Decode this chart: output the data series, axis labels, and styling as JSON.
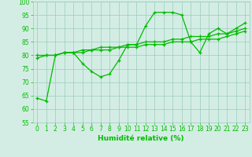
{
  "x": [
    0,
    1,
    2,
    3,
    4,
    5,
    6,
    7,
    8,
    9,
    10,
    11,
    12,
    13,
    14,
    15,
    16,
    17,
    18,
    19,
    20,
    21,
    22,
    23
  ],
  "y_data": [
    64,
    63,
    80,
    81,
    81,
    77,
    74,
    72,
    73,
    78,
    84,
    84,
    91,
    96,
    96,
    96,
    95,
    85,
    81,
    88,
    90,
    88,
    90,
    92
  ],
  "y_trend1": [
    80,
    80,
    80,
    81,
    81,
    81,
    82,
    82,
    82,
    83,
    83,
    83,
    84,
    84,
    84,
    85,
    85,
    85,
    86,
    86,
    86,
    87,
    88,
    89
  ],
  "y_trend2": [
    79,
    80,
    80,
    81,
    81,
    82,
    82,
    83,
    83,
    83,
    84,
    84,
    85,
    85,
    85,
    86,
    86,
    87,
    87,
    87,
    88,
    88,
    89,
    90
  ],
  "line_color": "#00bb00",
  "bg_color": "#d4ede4",
  "grid_color": "#99ccbb",
  "xlabel": "Humidité relative (%)",
  "ylim": [
    55,
    100
  ],
  "xlim": [
    -0.5,
    23.5
  ],
  "yticks": [
    55,
    60,
    65,
    70,
    75,
    80,
    85,
    90,
    95,
    100
  ],
  "xticks": [
    0,
    1,
    2,
    3,
    4,
    5,
    6,
    7,
    8,
    9,
    10,
    11,
    12,
    13,
    14,
    15,
    16,
    17,
    18,
    19,
    20,
    21,
    22,
    23
  ],
  "xlabel_fontsize": 6.5,
  "tick_fontsize": 5.5
}
